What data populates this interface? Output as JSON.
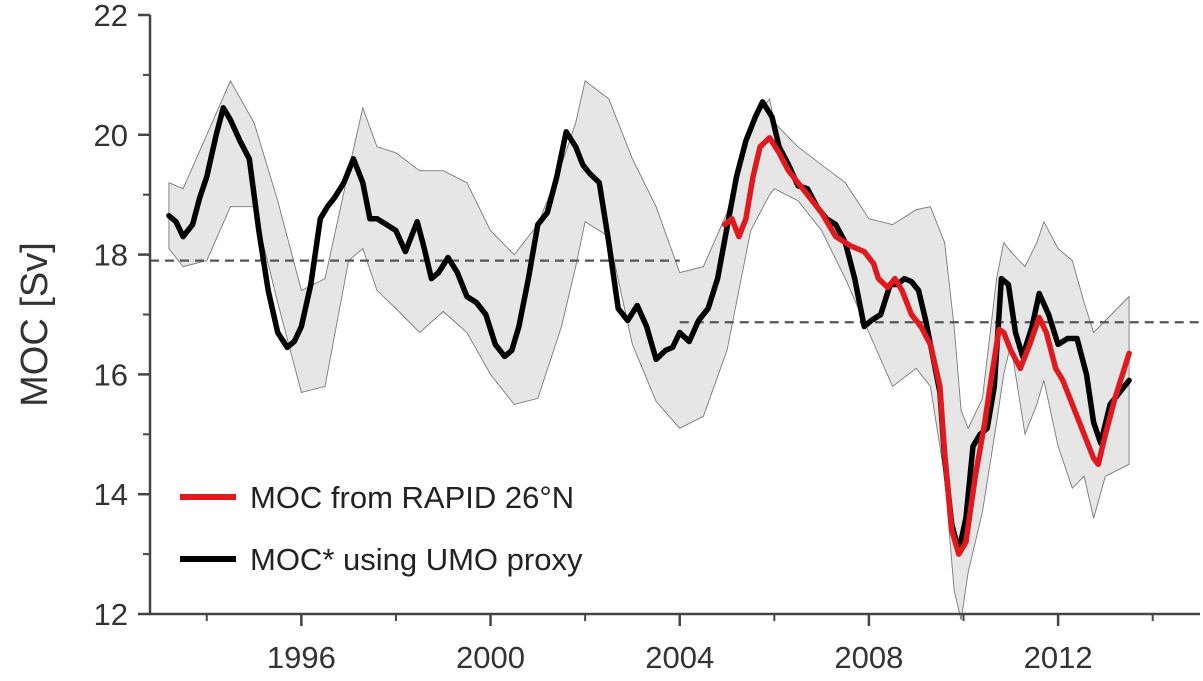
{
  "chart_data": {
    "type": "line",
    "title": "",
    "xlabel": "",
    "ylabel": "MOC [Sv]",
    "xlim": [
      1992.8,
      2015
    ],
    "ylim": [
      12,
      22
    ],
    "x_ticks": [
      1996,
      2000,
      2004,
      2008,
      2012
    ],
    "y_ticks": [
      12,
      14,
      16,
      18,
      20,
      22
    ],
    "grid": false,
    "legend_position": "bottom-left",
    "colors": {
      "rapid": "#e0191e",
      "proxy": "#000000",
      "band": "#e6e6e6",
      "reference": "#555555"
    },
    "legend": [
      {
        "label": "MOC from RAPID 26°N",
        "series": "rapid"
      },
      {
        "label": "MOC* using UMO proxy",
        "series": "proxy"
      }
    ],
    "reference_lines": [
      {
        "y": 17.9,
        "x_start": 1992.8,
        "x_end": 2004.0
      },
      {
        "y": 16.87,
        "x_start": 2004.0,
        "x_end": 2015.0
      }
    ],
    "series": [
      {
        "name": "MOC from RAPID 26°N",
        "key": "rapid",
        "x": [
          2004.95,
          2005.1,
          2005.25,
          2005.4,
          2005.55,
          2005.7,
          2005.9,
          2006.1,
          2006.3,
          2006.5,
          2006.75,
          2007.0,
          2007.3,
          2007.6,
          2007.9,
          2008.1,
          2008.2,
          2008.4,
          2008.55,
          2008.7,
          2008.9,
          2009.1,
          2009.3,
          2009.5,
          2009.6,
          2009.75,
          2009.9,
          2010.05,
          2010.25,
          2010.45,
          2010.6,
          2010.75,
          2010.85,
          2011.0,
          2011.2,
          2011.4,
          2011.6,
          2011.75,
          2011.95,
          2012.1,
          2012.3,
          2012.55,
          2012.75,
          2012.85,
          2013.0,
          2013.2,
          2013.5
        ],
        "y": [
          18.5,
          18.6,
          18.3,
          18.6,
          19.3,
          19.8,
          19.95,
          19.7,
          19.4,
          19.2,
          18.95,
          18.7,
          18.3,
          18.15,
          18.05,
          17.85,
          17.6,
          17.45,
          17.6,
          17.4,
          17.0,
          16.8,
          16.5,
          15.8,
          14.7,
          13.4,
          13.0,
          13.2,
          14.3,
          15.2,
          16.0,
          16.75,
          16.7,
          16.4,
          16.1,
          16.5,
          16.95,
          16.7,
          16.1,
          15.9,
          15.5,
          15.0,
          14.6,
          14.5,
          15.0,
          15.6,
          16.35
        ]
      },
      {
        "name": "MOC* using UMO proxy",
        "key": "proxy",
        "x": [
          1993.2,
          1993.35,
          1993.5,
          1993.7,
          1993.85,
          1994.0,
          1994.2,
          1994.35,
          1994.5,
          1994.7,
          1994.9,
          1995.1,
          1995.3,
          1995.5,
          1995.7,
          1995.85,
          1996.0,
          1996.2,
          1996.4,
          1996.55,
          1996.7,
          1996.9,
          1997.1,
          1997.3,
          1997.45,
          1997.6,
          1997.8,
          1998.0,
          1998.2,
          1998.45,
          1998.6,
          1998.75,
          1998.9,
          1999.1,
          1999.3,
          1999.5,
          1999.7,
          1999.9,
          2000.1,
          2000.3,
          2000.45,
          2000.6,
          2000.8,
          2001.0,
          2001.2,
          2001.4,
          2001.6,
          2001.8,
          2001.95,
          2002.1,
          2002.3,
          2002.5,
          2002.7,
          2002.9,
          2003.1,
          2003.3,
          2003.5,
          2003.7,
          2003.85,
          2004.0,
          2004.2,
          2004.4,
          2004.6,
          2004.8,
          2005.0,
          2005.2,
          2005.4,
          2005.6,
          2005.75,
          2005.95,
          2006.1,
          2006.3,
          2006.5,
          2006.7,
          2006.9,
          2007.1,
          2007.3,
          2007.5,
          2007.7,
          2007.9,
          2008.05,
          2008.25,
          2008.45,
          2008.6,
          2008.75,
          2008.9,
          2009.05,
          2009.2,
          2009.35,
          2009.5,
          2009.6,
          2009.75,
          2009.9,
          2010.05,
          2010.2,
          2010.35,
          2010.5,
          2010.65,
          2010.8,
          2010.95,
          2011.1,
          2011.25,
          2011.45,
          2011.6,
          2011.8,
          2012.0,
          2012.2,
          2012.4,
          2012.6,
          2012.75,
          2012.9,
          2013.1,
          2013.3,
          2013.5
        ],
        "y": [
          18.65,
          18.55,
          18.3,
          18.5,
          18.95,
          19.3,
          20.0,
          20.45,
          20.25,
          19.9,
          19.6,
          18.4,
          17.4,
          16.7,
          16.45,
          16.55,
          16.8,
          17.5,
          18.6,
          18.8,
          18.95,
          19.2,
          19.6,
          19.2,
          18.6,
          18.6,
          18.5,
          18.4,
          18.05,
          18.55,
          18.1,
          17.6,
          17.7,
          17.95,
          17.7,
          17.3,
          17.2,
          17.0,
          16.5,
          16.3,
          16.4,
          16.8,
          17.6,
          18.5,
          18.7,
          19.3,
          20.05,
          19.8,
          19.5,
          19.35,
          19.2,
          18.2,
          17.1,
          16.9,
          17.15,
          16.8,
          16.25,
          16.4,
          16.45,
          16.7,
          16.55,
          16.9,
          17.1,
          17.6,
          18.45,
          19.3,
          19.9,
          20.3,
          20.55,
          20.3,
          19.8,
          19.5,
          19.15,
          19.1,
          18.8,
          18.6,
          18.5,
          18.2,
          17.6,
          16.8,
          16.9,
          17.0,
          17.5,
          17.5,
          17.6,
          17.55,
          17.4,
          16.9,
          16.3,
          15.7,
          14.6,
          13.5,
          13.05,
          13.6,
          14.8,
          15.0,
          15.1,
          15.8,
          17.6,
          17.5,
          16.7,
          16.3,
          16.8,
          17.35,
          17.0,
          16.5,
          16.6,
          16.6,
          16.0,
          15.2,
          14.85,
          15.5,
          15.7,
          15.9
        ]
      }
    ],
    "confidence_band": {
      "x": [
        1993.2,
        1993.5,
        1994.0,
        1994.5,
        1995.0,
        1995.5,
        1996.0,
        1996.5,
        1997.0,
        1997.3,
        1997.6,
        1998.0,
        1998.5,
        1999.0,
        1999.5,
        2000.0,
        2000.5,
        2001.0,
        2001.5,
        2001.8,
        2002.0,
        2002.5,
        2003.0,
        2003.5,
        2004.0,
        2004.5,
        2005.0,
        2005.5,
        2005.9,
        2006.0,
        2006.5,
        2007.0,
        2007.5,
        2008.0,
        2008.5,
        2009.0,
        2009.3,
        2009.6,
        2009.8,
        2009.95,
        2010.1,
        2010.4,
        2010.7,
        2010.85,
        2011.0,
        2011.3,
        2011.55,
        2011.7,
        2012.0,
        2012.3,
        2012.55,
        2012.75,
        2013.0,
        2013.5
      ],
      "upper": [
        19.2,
        19.1,
        20.0,
        20.9,
        20.2,
        18.9,
        17.4,
        17.6,
        19.4,
        20.45,
        19.8,
        19.7,
        19.4,
        19.4,
        19.2,
        18.4,
        18.0,
        18.5,
        19.5,
        20.2,
        20.9,
        20.6,
        19.6,
        18.8,
        17.7,
        17.8,
        18.7,
        20.2,
        20.6,
        20.2,
        19.8,
        19.5,
        19.2,
        18.6,
        18.5,
        18.75,
        18.8,
        18.2,
        16.8,
        15.4,
        15.1,
        15.6,
        17.6,
        18.2,
        18.05,
        17.8,
        18.2,
        18.55,
        18.1,
        17.9,
        17.2,
        16.7,
        16.9,
        17.3
      ],
      "lower": [
        18.1,
        17.8,
        17.9,
        18.8,
        18.8,
        17.2,
        15.7,
        15.8,
        17.9,
        18.1,
        17.4,
        17.1,
        16.7,
        17.05,
        16.7,
        16.0,
        15.5,
        15.6,
        16.8,
        17.8,
        18.55,
        18.3,
        16.5,
        15.55,
        15.1,
        15.3,
        16.4,
        18.4,
        19.0,
        19.1,
        18.9,
        18.4,
        17.6,
        16.7,
        15.8,
        16.1,
        15.8,
        14.3,
        12.4,
        11.9,
        12.7,
        13.7,
        15.2,
        16.0,
        16.5,
        15.0,
        15.5,
        15.9,
        14.8,
        14.1,
        14.3,
        13.6,
        14.3,
        14.5
      ]
    }
  }
}
